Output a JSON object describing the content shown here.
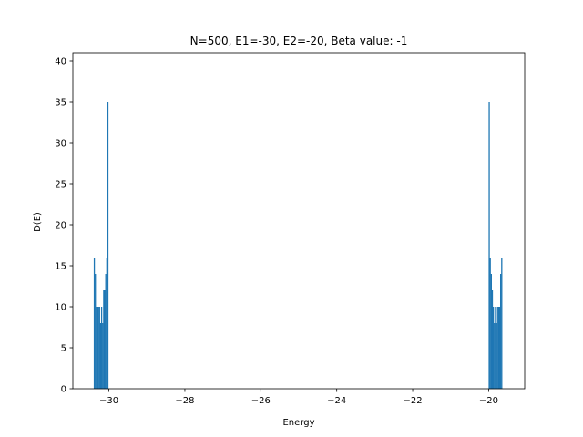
{
  "chart_data": {
    "type": "bar",
    "title": "N=500, E1=-30, E2=-20, Beta value: -1",
    "xlabel": "Energy",
    "ylabel": "D(E)",
    "xlim": [
      -30.95,
      -19.05
    ],
    "ylim": [
      0,
      41
    ],
    "x_ticks": [
      -30,
      -28,
      -26,
      -24,
      -22,
      -20
    ],
    "x_tick_labels": [
      "−30",
      "−28",
      "−26",
      "−24",
      "−22",
      "−20"
    ],
    "y_ticks": [
      0,
      5,
      10,
      15,
      20,
      25,
      30,
      35,
      40
    ],
    "y_tick_labels": [
      "0",
      "5",
      "10",
      "15",
      "20",
      "25",
      "30",
      "35",
      "40"
    ],
    "bar_color": "#1f77b4",
    "bin_width": 0.0275,
    "series": [
      {
        "bin_start": -30.4,
        "values": [
          16,
          14,
          10,
          10,
          10,
          10,
          8,
          10,
          8,
          12,
          12,
          14,
          16,
          35
        ]
      },
      {
        "bin_start": -20.0,
        "values": [
          35,
          16,
          14,
          12,
          10,
          8,
          10,
          8,
          10,
          10,
          10,
          14,
          16
        ]
      }
    ],
    "grid": false,
    "legend": "none"
  }
}
